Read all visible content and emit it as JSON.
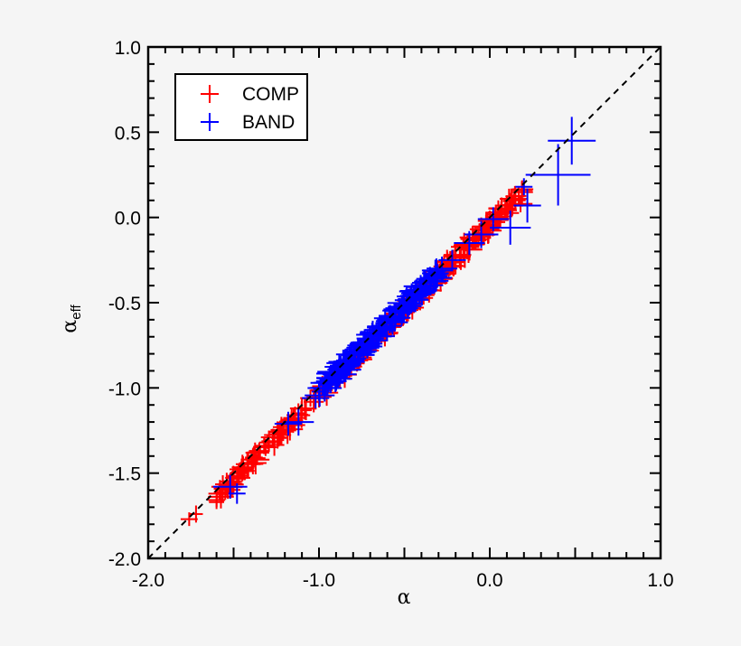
{
  "chart_data": {
    "type": "scatter",
    "title": "",
    "xlabel": "α",
    "ylabel": "α_eff",
    "ylabel_main": "α",
    "ylabel_sub": "eff",
    "xlim": [
      -2.0,
      1.0
    ],
    "ylim": [
      -2.0,
      1.0
    ],
    "x_ticks": [
      -2.0,
      -1.0,
      0.0,
      1.0
    ],
    "x_tick_labels": [
      "-2.0",
      "-1.0",
      "0.0",
      "1.0"
    ],
    "y_ticks": [
      -2.0,
      -1.5,
      -1.0,
      -0.5,
      0.0,
      0.5,
      1.0
    ],
    "y_tick_labels": [
      "-2.0",
      "-1.5",
      "-1.0",
      "-0.5",
      "0.0",
      "0.5",
      "1.0"
    ],
    "minor_tick_step": 0.1,
    "grid": false,
    "reference_line": {
      "type": "y=x",
      "style": "dashed",
      "color": "#000000"
    },
    "legend": {
      "position": "upper-left",
      "entries": [
        {
          "label": "COMP",
          "color": "#ff0000",
          "marker": "+"
        },
        {
          "label": "BAND",
          "color": "#0000ff",
          "marker": "+"
        }
      ]
    },
    "series": [
      {
        "name": "COMP",
        "color": "#ff0000",
        "marker": "errorbar-cross",
        "points": [
          {
            "x": -1.76,
            "y": -1.77,
            "xerr": 0.05,
            "yerr": 0.04
          },
          {
            "x": -1.72,
            "y": -1.74,
            "xerr": 0.04,
            "yerr": 0.05
          },
          {
            "x": -1.58,
            "y": -1.58,
            "xerr": 0.05,
            "yerr": 0.04
          },
          {
            "x": -1.52,
            "y": -1.55,
            "xerr": 0.06,
            "yerr": 0.05
          },
          {
            "x": -1.47,
            "y": -1.5,
            "xerr": 0.05,
            "yerr": 0.05
          },
          {
            "x": -1.42,
            "y": -1.44,
            "xerr": 0.04,
            "yerr": 0.06
          },
          {
            "x": -1.38,
            "y": -1.38,
            "xerr": 0.05,
            "yerr": 0.04
          },
          {
            "x": -1.35,
            "y": -1.37,
            "xerr": 0.06,
            "yerr": 0.05
          },
          {
            "x": -1.3,
            "y": -1.32,
            "xerr": 0.05,
            "yerr": 0.04
          },
          {
            "x": -1.27,
            "y": -1.29,
            "xerr": 0.07,
            "yerr": 0.05
          },
          {
            "x": -1.22,
            "y": -1.23,
            "xerr": 0.05,
            "yerr": 0.06
          },
          {
            "x": -1.18,
            "y": -1.21,
            "xerr": 0.06,
            "yerr": 0.05
          },
          {
            "x": -1.14,
            "y": -1.16,
            "xerr": 0.05,
            "yerr": 0.05
          },
          {
            "x": -1.1,
            "y": -1.12,
            "xerr": 0.07,
            "yerr": 0.06
          },
          {
            "x": -1.05,
            "y": -1.06,
            "xerr": 0.06,
            "yerr": 0.05
          },
          {
            "x": -1.02,
            "y": -1.05,
            "xerr": 0.05,
            "yerr": 0.04
          },
          {
            "x": -0.98,
            "y": -0.99,
            "xerr": 0.06,
            "yerr": 0.06
          },
          {
            "x": -0.92,
            "y": -0.94,
            "xerr": 0.05,
            "yerr": 0.05
          },
          {
            "x": -0.85,
            "y": -0.88,
            "xerr": 0.06,
            "yerr": 0.05
          },
          {
            "x": -0.78,
            "y": -0.8,
            "xerr": 0.05,
            "yerr": 0.06
          },
          {
            "x": -0.7,
            "y": -0.72,
            "xerr": 0.06,
            "yerr": 0.05
          },
          {
            "x": -0.62,
            "y": -0.64,
            "xerr": 0.05,
            "yerr": 0.05
          },
          {
            "x": -0.55,
            "y": -0.57,
            "xerr": 0.06,
            "yerr": 0.06
          },
          {
            "x": -0.48,
            "y": -0.51,
            "xerr": 0.06,
            "yerr": 0.05
          },
          {
            "x": -0.42,
            "y": -0.43,
            "xerr": 0.07,
            "yerr": 0.06
          },
          {
            "x": -0.35,
            "y": -0.37,
            "xerr": 0.06,
            "yerr": 0.06
          },
          {
            "x": -0.3,
            "y": -0.33,
            "xerr": 0.07,
            "yerr": 0.05
          },
          {
            "x": -0.25,
            "y": -0.26,
            "xerr": 0.06,
            "yerr": 0.07
          },
          {
            "x": -0.2,
            "y": -0.22,
            "xerr": 0.07,
            "yerr": 0.06
          },
          {
            "x": -0.15,
            "y": -0.16,
            "xerr": 0.06,
            "yerr": 0.07
          },
          {
            "x": -0.1,
            "y": -0.12,
            "xerr": 0.07,
            "yerr": 0.06
          },
          {
            "x": -0.05,
            "y": -0.07,
            "xerr": 0.06,
            "yerr": 0.07
          },
          {
            "x": 0.0,
            "y": -0.02,
            "xerr": 0.07,
            "yerr": 0.06
          },
          {
            "x": 0.05,
            "y": 0.03,
            "xerr": 0.06,
            "yerr": 0.07
          },
          {
            "x": 0.1,
            "y": 0.07,
            "xerr": 0.07,
            "yerr": 0.06
          },
          {
            "x": 0.15,
            "y": 0.1,
            "xerr": 0.06,
            "yerr": 0.06
          },
          {
            "x": 0.18,
            "y": 0.08,
            "xerr": 0.07,
            "yerr": 0.05
          }
        ]
      },
      {
        "name": "BAND",
        "color": "#0000ff",
        "marker": "errorbar-cross",
        "points": [
          {
            "x": -1.52,
            "y": -1.58,
            "xerr": 0.1,
            "yerr": 0.07
          },
          {
            "x": -1.48,
            "y": -1.62,
            "xerr": 0.05,
            "yerr": 0.06
          },
          {
            "x": -1.18,
            "y": -1.21,
            "xerr": 0.08,
            "yerr": 0.07
          },
          {
            "x": -1.12,
            "y": -1.2,
            "xerr": 0.09,
            "yerr": 0.08
          },
          {
            "x": -1.02,
            "y": -1.06,
            "xerr": 0.08,
            "yerr": 0.06
          },
          {
            "x": -0.95,
            "y": -0.97,
            "xerr": 0.08,
            "yerr": 0.07
          },
          {
            "x": -0.88,
            "y": -0.92,
            "xerr": 0.1,
            "yerr": 0.07
          },
          {
            "x": -0.82,
            "y": -0.84,
            "xerr": 0.08,
            "yerr": 0.08
          },
          {
            "x": -0.76,
            "y": -0.79,
            "xerr": 0.09,
            "yerr": 0.06
          },
          {
            "x": -0.7,
            "y": -0.71,
            "xerr": 0.08,
            "yerr": 0.07
          },
          {
            "x": -0.64,
            "y": -0.66,
            "xerr": 0.09,
            "yerr": 0.07
          },
          {
            "x": -0.58,
            "y": -0.6,
            "xerr": 0.08,
            "yerr": 0.06
          },
          {
            "x": -0.52,
            "y": -0.55,
            "xerr": 0.09,
            "yerr": 0.07
          },
          {
            "x": -0.46,
            "y": -0.48,
            "xerr": 0.08,
            "yerr": 0.08
          },
          {
            "x": -0.4,
            "y": -0.43,
            "xerr": 0.09,
            "yerr": 0.06
          },
          {
            "x": -0.35,
            "y": -0.36,
            "xerr": 0.08,
            "yerr": 0.07
          },
          {
            "x": -0.28,
            "y": -0.3,
            "xerr": 0.09,
            "yerr": 0.07
          },
          {
            "x": -0.22,
            "y": -0.25,
            "xerr": 0.08,
            "yerr": 0.06
          },
          {
            "x": -0.12,
            "y": -0.15,
            "xerr": 0.09,
            "yerr": 0.07
          },
          {
            "x": -0.05,
            "y": -0.1,
            "xerr": 0.1,
            "yerr": 0.08
          },
          {
            "x": 0.02,
            "y": -0.01,
            "xerr": 0.09,
            "yerr": 0.07
          },
          {
            "x": 0.12,
            "y": -0.06,
            "xerr": 0.12,
            "yerr": 0.1
          },
          {
            "x": 0.2,
            "y": 0.18,
            "xerr": 0.05,
            "yerr": 0.05
          },
          {
            "x": 0.22,
            "y": 0.07,
            "xerr": 0.08,
            "yerr": 0.1
          },
          {
            "x": 0.4,
            "y": 0.25,
            "xerr": 0.19,
            "yerr": 0.18
          },
          {
            "x": 0.48,
            "y": 0.45,
            "xerr": 0.14,
            "yerr": 0.14
          }
        ]
      }
    ],
    "dense_band": {
      "description": "Dense overlapping cluster of error-bar crosses along y=x",
      "COMP_density_range": [
        -1.6,
        0.2
      ],
      "BAND_density_range": [
        -1.0,
        -0.3
      ]
    }
  }
}
